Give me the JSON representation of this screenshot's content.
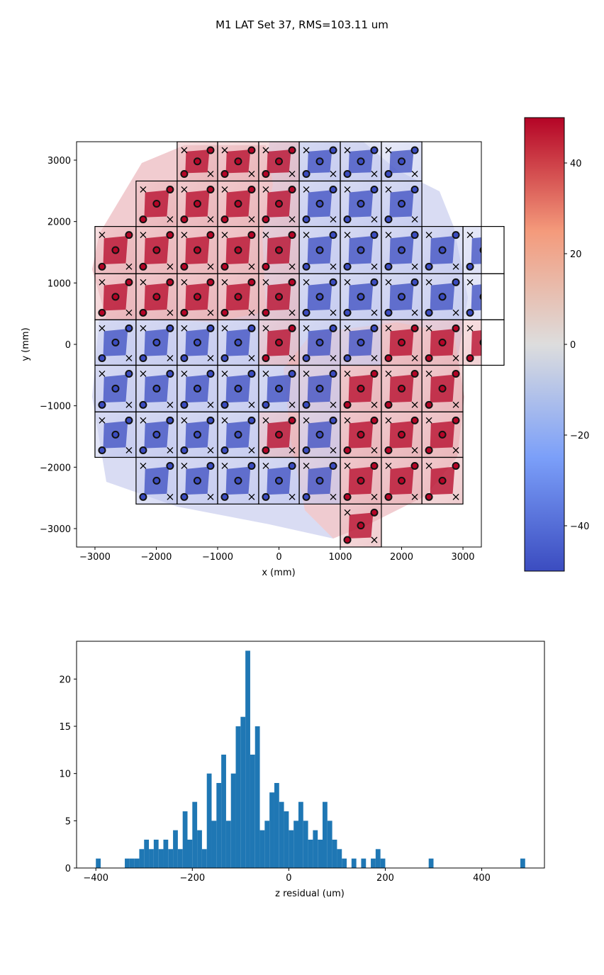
{
  "figure": {
    "title": "M1 LAT Set 37, RMS=103.11 um"
  },
  "chart_data": [
    {
      "type": "contour-map",
      "xlabel": "x (mm)",
      "ylabel": "y (mm)",
      "xlim": [
        -3300,
        3300
      ],
      "ylim": [
        -3300,
        3300
      ],
      "x_ticks": [
        -3000,
        -2000,
        -1000,
        0,
        1000,
        2000,
        3000
      ],
      "x_tick_labels": [
        "−3000",
        "−2000",
        "−1000",
        "0",
        "1000",
        "2000",
        "3000"
      ],
      "y_ticks": [
        3000,
        2000,
        1000,
        0,
        -1000,
        -2000,
        -3000
      ],
      "y_tick_labels": [
        "3000",
        "2000",
        "1000",
        "0",
        "−1000",
        "−2000",
        "−3000"
      ],
      "colorbar": {
        "range": [
          -50,
          50
        ],
        "ticks": [
          40,
          20,
          0,
          -20,
          -40
        ],
        "tick_labels": [
          "40",
          "20",
          "0",
          "−20",
          "−40"
        ],
        "colormap": "coolwarm",
        "low_color": "#3b4cc0",
        "mid_color": "#dddddd",
        "high_color": "#b40426"
      },
      "grid_rows": [
        {
          "y_top": 3300,
          "y_bottom": 2660,
          "cells": [
            "",
            "",
            "R",
            "R",
            "R",
            "B",
            "B",
            "B",
            "",
            ""
          ]
        },
        {
          "y_top": 2660,
          "y_bottom": 1920,
          "cells": [
            "",
            "R",
            "R",
            "R",
            "R",
            "B",
            "B",
            "B",
            "",
            ""
          ]
        },
        {
          "y_top": 1920,
          "y_bottom": 1150,
          "cells": [
            "R",
            "R",
            "R",
            "R",
            "R",
            "B",
            "B",
            "B",
            "B",
            "B"
          ]
        },
        {
          "y_top": 1150,
          "y_bottom": 400,
          "cells": [
            "R",
            "R",
            "R",
            "R",
            "R",
            "B",
            "B",
            "B",
            "B",
            "B"
          ]
        },
        {
          "y_top": 400,
          "y_bottom": -340,
          "cells": [
            "B",
            "B",
            "B",
            "B",
            "R",
            "B",
            "B",
            "R",
            "R",
            "R"
          ]
        },
        {
          "y_top": -340,
          "y_bottom": -1100,
          "cells": [
            "B",
            "B",
            "B",
            "B",
            "B",
            "B",
            "R",
            "R",
            "R",
            ""
          ]
        },
        {
          "y_top": -1100,
          "y_bottom": -1840,
          "cells": [
            "B",
            "B",
            "B",
            "B",
            "R",
            "B",
            "R",
            "R",
            "R",
            ""
          ]
        },
        {
          "y_top": -1840,
          "y_bottom": -2600,
          "cells": [
            "",
            "B",
            "B",
            "B",
            "B",
            "B",
            "R",
            "R",
            "R",
            ""
          ]
        },
        {
          "y_top": -2600,
          "y_bottom": -3300,
          "cells": [
            "",
            "",
            "",
            "",
            "",
            "",
            "R",
            "",
            "",
            ""
          ]
        }
      ],
      "grid_columns_x": [
        -3000,
        -2330,
        -1660,
        -1000,
        -330,
        330,
        1000,
        1670,
        2330,
        3000
      ]
    },
    {
      "type": "histogram",
      "xlabel": "z residual (um)",
      "ylabel": "",
      "xlim": [
        -440,
        530
      ],
      "ylim": [
        0,
        24
      ],
      "x_ticks": [
        -400,
        -200,
        0,
        200,
        400
      ],
      "x_tick_labels": [
        "−400",
        "−200",
        "0",
        "200",
        "400"
      ],
      "y_ticks": [
        0,
        5,
        10,
        15,
        20
      ],
      "y_tick_labels": [
        "0",
        "5",
        "10",
        "15",
        "20"
      ],
      "bar_color": "#1f77b4",
      "bin_start": -400,
      "bin_width": 10,
      "counts": [
        1,
        0,
        0,
        0,
        0,
        0,
        1,
        1,
        1,
        2,
        3,
        2,
        3,
        2,
        3,
        2,
        4,
        2,
        6,
        3,
        7,
        4,
        2,
        10,
        5,
        9,
        12,
        5,
        10,
        15,
        16,
        23,
        12,
        15,
        4,
        5,
        8,
        9,
        7,
        6,
        4,
        5,
        7,
        5,
        3,
        4,
        3,
        7,
        5,
        3,
        2,
        1,
        0,
        1,
        0,
        1,
        0,
        1,
        2,
        1,
        0,
        0,
        0,
        0,
        0,
        0,
        0,
        0,
        0,
        1,
        0,
        0,
        0,
        0,
        0,
        0,
        0,
        0,
        0,
        0,
        0,
        0,
        0,
        0,
        0,
        0,
        0,
        0,
        1
      ]
    }
  ]
}
